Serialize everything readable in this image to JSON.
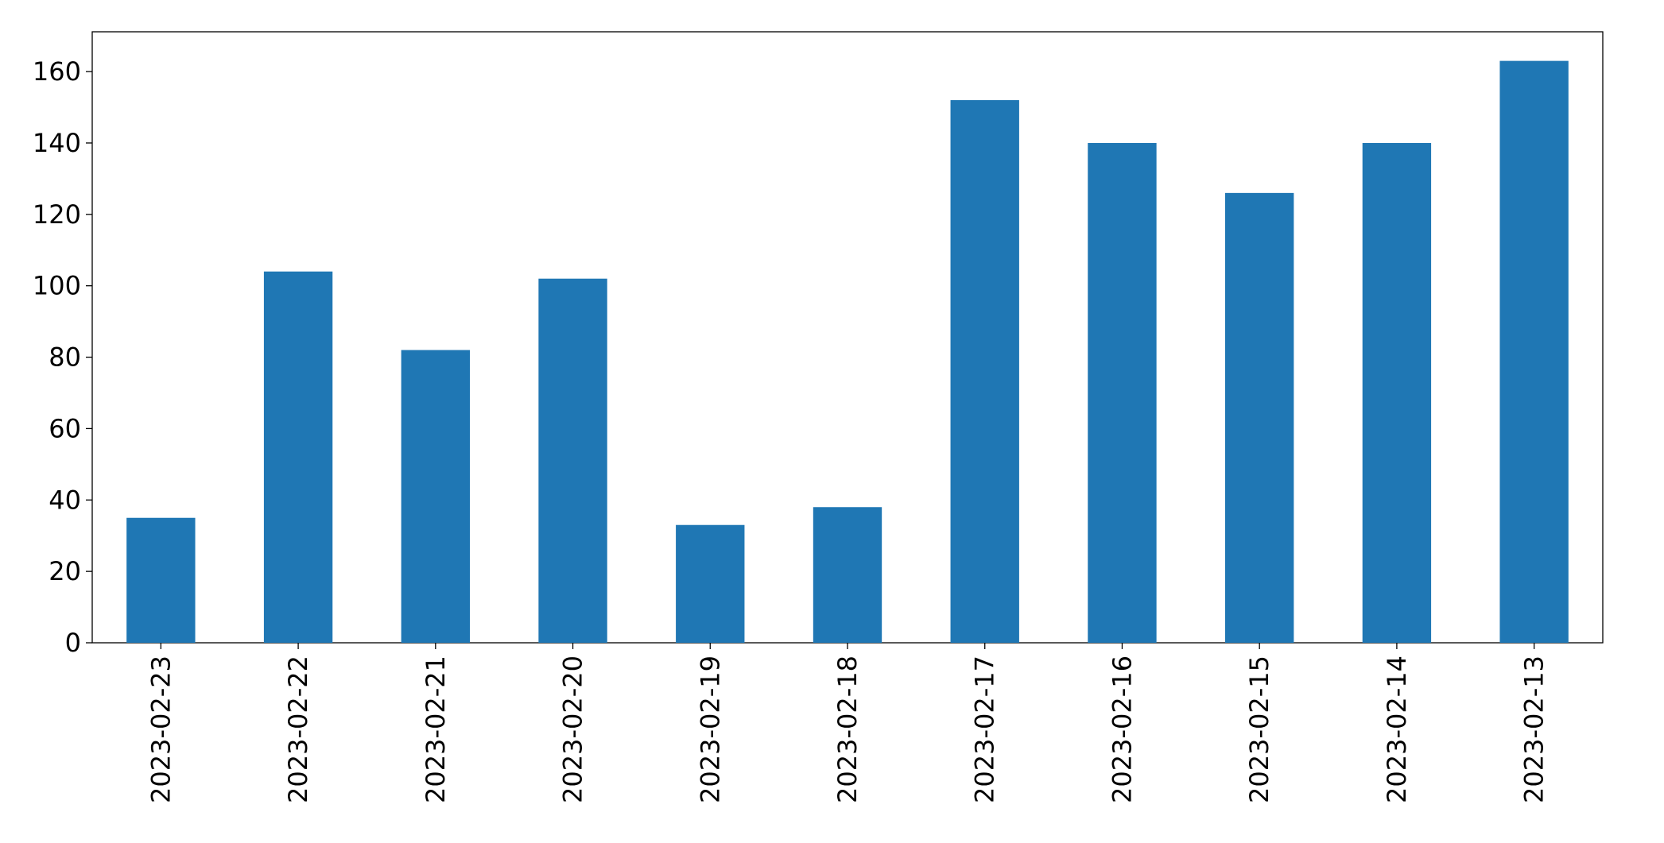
{
  "chart_data": {
    "type": "bar",
    "categories": [
      "2023-02-23",
      "2023-02-22",
      "2023-02-21",
      "2023-02-20",
      "2023-02-19",
      "2023-02-18",
      "2023-02-17",
      "2023-02-16",
      "2023-02-15",
      "2023-02-14",
      "2023-02-13"
    ],
    "values": [
      35,
      104,
      82,
      102,
      33,
      38,
      152,
      140,
      126,
      140,
      163
    ],
    "color": "#1f77b4",
    "ylim": [
      0,
      171.15
    ],
    "yticks": [
      0,
      20,
      40,
      60,
      80,
      100,
      120,
      140,
      160
    ]
  }
}
